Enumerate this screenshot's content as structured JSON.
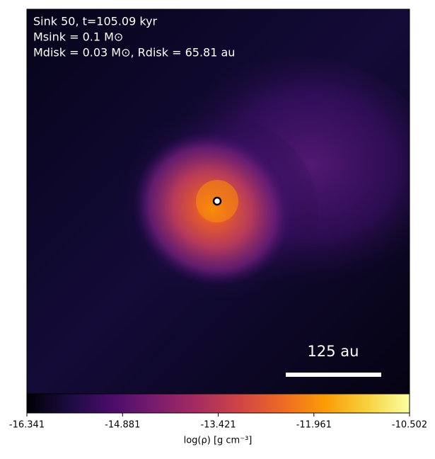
{
  "chart_data": {
    "type": "image",
    "annotations": [
      "Sink 50, t=105.09 kyr",
      "Msink = 0.1 M⊙",
      "Mdisk = 0.03 M⊙, Rdisk = 65.81 au"
    ],
    "scale_bar_label": "125 au",
    "colormap": "inferno",
    "colorbar_label": "log(ρ) [g cm⁻³]",
    "clim": [
      -16.341,
      -10.502
    ],
    "colorbar_ticks": [
      -16.341,
      -14.881,
      -13.421,
      -11.961,
      -10.502
    ]
  }
}
